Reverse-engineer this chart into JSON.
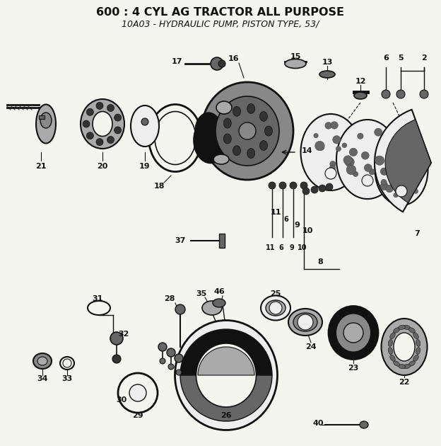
{
  "title": "600 : 4 CYL AG TRACTOR ALL PURPOSE",
  "subtitle": "10A03 - HYDRAULIC PUMP, PISTON TYPE, 53/",
  "title_fontsize": 11.5,
  "subtitle_fontsize": 9,
  "bg_color": "#f5f5f0",
  "fig_width": 6.24,
  "fig_height": 6.3,
  "dpi": 100
}
